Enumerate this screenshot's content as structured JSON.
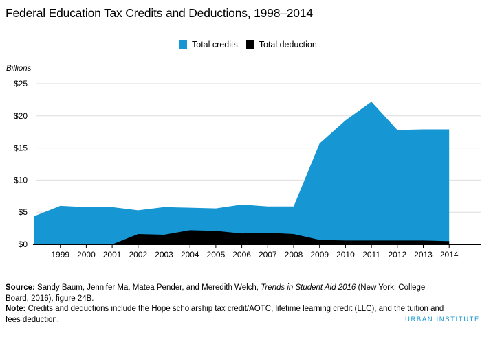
{
  "chart_data": {
    "type": "area",
    "title": "Federal Education Tax Credits and Deductions, 1998–2014",
    "ylabel": "Billions",
    "xlabel": "",
    "ylim": [
      0,
      25
    ],
    "yticks": [
      "$0",
      "$5",
      "$10",
      "$15",
      "$20",
      "$25"
    ],
    "ytick_values": [
      0,
      5,
      10,
      15,
      20,
      25
    ],
    "x": [
      1998,
      1999,
      2000,
      2001,
      2002,
      2003,
      2004,
      2005,
      2006,
      2007,
      2008,
      2009,
      2010,
      2011,
      2012,
      2013,
      2014
    ],
    "xtick_labels": [
      "1999",
      "2000",
      "2001",
      "2002",
      "2003",
      "2004",
      "2005",
      "2006",
      "2007",
      "2008",
      "2009",
      "2010",
      "2011",
      "2012",
      "2013",
      "2014"
    ],
    "grid": true,
    "legend_position": "top-center",
    "series": [
      {
        "name": "Total credits",
        "color": "#1696d2",
        "values": [
          4.4,
          6.0,
          5.8,
          5.8,
          5.3,
          5.8,
          5.7,
          5.6,
          6.2,
          5.9,
          5.9,
          15.7,
          19.3,
          22.2,
          17.8,
          17.9,
          17.9
        ]
      },
      {
        "name": "Total deduction",
        "color": "#000000",
        "values": [
          0,
          0,
          0,
          0,
          1.6,
          1.5,
          2.2,
          2.1,
          1.7,
          1.8,
          1.6,
          0.7,
          0.6,
          0.6,
          0.6,
          0.6,
          0.5
        ]
      }
    ]
  },
  "source": {
    "label": "Source:",
    "text_before_italic": " Sandy Baum, Jennifer Ma, Matea Pender, and Meredith Welch, ",
    "italic_title": "Trends in Student Aid 2016",
    "text_after_italic": " (New York: College Board, 2016), figure 24B."
  },
  "note": {
    "label": "Note:",
    "text": " Credits and deductions include the Hope scholarship tax credit/AOTC, lifetime learning credit (LLC), and the tuition and fees deduction."
  },
  "brand": "URBAN INSTITUTE"
}
